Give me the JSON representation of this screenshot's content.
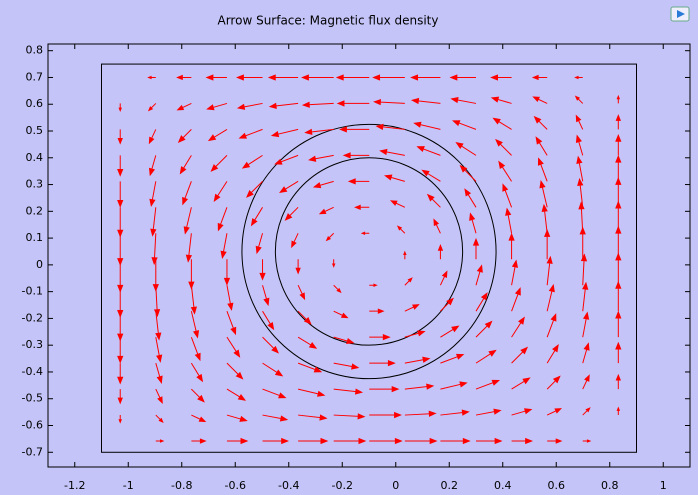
{
  "chart_data": {
    "type": "quiver",
    "title": "Arrow Surface: Magnetic flux density",
    "xlim": [
      -1.3,
      1.1
    ],
    "ylim": [
      -0.755,
      0.825
    ],
    "xticks": [
      -1.2,
      -1,
      -0.8,
      -0.6,
      -0.4,
      -0.2,
      0,
      0.2,
      0.4,
      0.6,
      0.8,
      1
    ],
    "yticks": [
      -0.7,
      -0.6,
      -0.5,
      -0.4,
      -0.3,
      -0.2,
      -0.1,
      0,
      0.1,
      0.2,
      0.3,
      0.4,
      0.5,
      0.6,
      0.7,
      0.8
    ],
    "color": "#ff0000",
    "geometry": {
      "rectangle": [
        -1.1,
        -0.7,
        0.9,
        0.75
      ],
      "circles": [
        {
          "center": [
            -0.1,
            0.05
          ],
          "r": 0.475
        },
        {
          "center": [
            -0.1,
            0.05
          ],
          "r": 0.35
        }
      ]
    },
    "x": [
      -1.03,
      -0.897,
      -0.764,
      -0.631,
      -0.498,
      -0.365,
      -0.232,
      -0.099,
      0.034,
      0.167,
      0.3,
      0.433,
      0.566,
      0.699,
      0.832
    ],
    "y": [
      0.7,
      0.603,
      0.506,
      0.409,
      0.312,
      0.215,
      0.118,
      0.021,
      -0.076,
      -0.173,
      -0.27,
      -0.367,
      -0.464,
      -0.561,
      -0.658
    ],
    "u": [
      [
        0,
        -0.027,
        -0.052,
        -0.075,
        -0.094,
        -0.108,
        -0.117,
        -0.12,
        -0.117,
        -0.108,
        -0.094,
        -0.075,
        -0.052,
        -0.027,
        0
      ],
      [
        0,
        -0.026,
        -0.051,
        -0.073,
        -0.091,
        -0.105,
        -0.114,
        -0.117,
        -0.114,
        -0.105,
        -0.091,
        -0.073,
        -0.051,
        -0.026,
        0
      ],
      [
        0,
        -0.024,
        -0.047,
        -0.067,
        -0.085,
        -0.097,
        -0.105,
        -0.108,
        -0.105,
        -0.097,
        -0.085,
        -0.067,
        -0.047,
        -0.024,
        0
      ],
      [
        0,
        -0.021,
        -0.041,
        -0.058,
        -0.073,
        -0.085,
        -0.091,
        -0.094,
        -0.091,
        -0.085,
        -0.073,
        -0.058,
        -0.041,
        -0.021,
        0
      ],
      [
        0,
        -0.017,
        -0.032,
        -0.047,
        -0.058,
        -0.067,
        -0.073,
        -0.075,
        -0.073,
        -0.067,
        -0.058,
        -0.047,
        -0.032,
        -0.017,
        0
      ],
      [
        0,
        -0.012,
        -0.023,
        -0.032,
        -0.041,
        -0.047,
        -0.051,
        -0.052,
        -0.051,
        -0.047,
        -0.041,
        -0.032,
        -0.023,
        -0.012,
        0
      ],
      [
        0,
        -0.006,
        -0.012,
        -0.017,
        -0.021,
        -0.024,
        -0.026,
        -0.027,
        -0.026,
        -0.024,
        -0.021,
        -0.017,
        -0.012,
        -0.006,
        0
      ],
      [
        0,
        0,
        0,
        0,
        0,
        0,
        0,
        0,
        0,
        0,
        0,
        0,
        0,
        0,
        0
      ],
      [
        0,
        0.006,
        0.012,
        0.017,
        0.021,
        0.024,
        0.026,
        0.027,
        0.026,
        0.024,
        0.021,
        0.017,
        0.012,
        0.006,
        0
      ],
      [
        0,
        0.012,
        0.023,
        0.032,
        0.041,
        0.047,
        0.051,
        0.052,
        0.051,
        0.047,
        0.041,
        0.032,
        0.023,
        0.012,
        0
      ],
      [
        0,
        0.017,
        0.032,
        0.047,
        0.058,
        0.067,
        0.073,
        0.075,
        0.073,
        0.067,
        0.058,
        0.047,
        0.032,
        0.017,
        0
      ],
      [
        0,
        0.021,
        0.041,
        0.058,
        0.073,
        0.085,
        0.091,
        0.094,
        0.091,
        0.085,
        0.073,
        0.058,
        0.041,
        0.021,
        0
      ],
      [
        0,
        0.024,
        0.047,
        0.067,
        0.085,
        0.097,
        0.105,
        0.108,
        0.105,
        0.097,
        0.085,
        0.067,
        0.047,
        0.024,
        0
      ],
      [
        0,
        0.026,
        0.051,
        0.073,
        0.091,
        0.105,
        0.114,
        0.117,
        0.114,
        0.105,
        0.091,
        0.073,
        0.051,
        0.026,
        0
      ],
      [
        0,
        0.027,
        0.052,
        0.075,
        0.094,
        0.108,
        0.117,
        0.12,
        0.117,
        0.108,
        0.094,
        0.075,
        0.052,
        0.027,
        0
      ]
    ],
    "v": [
      [
        0,
        0,
        0,
        0,
        0,
        0,
        0,
        0,
        0,
        0,
        0,
        0,
        0,
        0,
        0
      ],
      [
        -0.027,
        -0.026,
        -0.024,
        -0.021,
        -0.017,
        -0.012,
        -0.006,
        0,
        0.006,
        0.012,
        0.017,
        0.021,
        0.024,
        0.026,
        0.027
      ],
      [
        -0.052,
        -0.051,
        -0.047,
        -0.041,
        -0.032,
        -0.023,
        -0.012,
        0,
        0.012,
        0.023,
        0.032,
        0.041,
        0.047,
        0.051,
        0.052
      ],
      [
        -0.075,
        -0.073,
        -0.067,
        -0.058,
        -0.047,
        -0.032,
        -0.017,
        0,
        0.017,
        0.032,
        0.047,
        0.058,
        0.067,
        0.073,
        0.075
      ],
      [
        -0.094,
        -0.091,
        -0.085,
        -0.073,
        -0.058,
        -0.041,
        -0.021,
        0,
        0.021,
        0.041,
        0.058,
        0.073,
        0.085,
        0.091,
        0.094
      ],
      [
        -0.108,
        -0.105,
        -0.097,
        -0.085,
        -0.067,
        -0.047,
        -0.024,
        0,
        0.024,
        0.047,
        0.067,
        0.085,
        0.097,
        0.105,
        0.108
      ],
      [
        -0.117,
        -0.114,
        -0.105,
        -0.091,
        -0.073,
        -0.051,
        -0.026,
        0,
        0.026,
        0.051,
        0.073,
        0.091,
        0.105,
        0.114,
        0.117
      ],
      [
        -0.12,
        -0.117,
        -0.108,
        -0.094,
        -0.075,
        -0.052,
        -0.027,
        0,
        0.027,
        0.052,
        0.075,
        0.094,
        0.108,
        0.117,
        0.12
      ],
      [
        -0.117,
        -0.114,
        -0.105,
        -0.091,
        -0.073,
        -0.051,
        -0.026,
        0,
        0.026,
        0.051,
        0.073,
        0.091,
        0.105,
        0.114,
        0.117
      ],
      [
        -0.108,
        -0.105,
        -0.097,
        -0.085,
        -0.067,
        -0.047,
        -0.024,
        0,
        0.024,
        0.047,
        0.067,
        0.085,
        0.097,
        0.105,
        0.108
      ],
      [
        -0.094,
        -0.091,
        -0.085,
        -0.073,
        -0.058,
        -0.041,
        -0.021,
        0,
        0.021,
        0.041,
        0.058,
        0.073,
        0.085,
        0.091,
        0.094
      ],
      [
        -0.075,
        -0.073,
        -0.067,
        -0.058,
        -0.047,
        -0.032,
        -0.017,
        0,
        0.017,
        0.032,
        0.047,
        0.058,
        0.067,
        0.073,
        0.075
      ],
      [
        -0.052,
        -0.051,
        -0.047,
        -0.041,
        -0.032,
        -0.023,
        -0.012,
        0,
        0.012,
        0.023,
        0.032,
        0.041,
        0.047,
        0.051,
        0.052
      ],
      [
        -0.027,
        -0.026,
        -0.024,
        -0.021,
        -0.017,
        -0.012,
        -0.006,
        0,
        0.006,
        0.012,
        0.017,
        0.021,
        0.024,
        0.026,
        0.027
      ],
      [
        0,
        0,
        0,
        0,
        0,
        0,
        0,
        0,
        0,
        0,
        0,
        0,
        0,
        0,
        0
      ]
    ]
  }
}
